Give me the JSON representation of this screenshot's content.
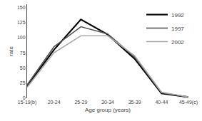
{
  "chart_data": {
    "type": "line",
    "categories": [
      "15-19(b)",
      "20-24",
      "25-29",
      "30-34",
      "35-39",
      "40-44",
      "45-49(c)"
    ],
    "series": [
      {
        "name": "1992",
        "color": "#000000",
        "values": [
          20,
          80,
          130,
          105,
          65,
          8,
          2
        ]
      },
      {
        "name": "1997",
        "color": "#555555",
        "values": [
          22,
          85,
          118,
          106,
          68,
          9,
          2
        ]
      },
      {
        "name": "2002",
        "color": "#aaaaaa",
        "values": [
          18,
          75,
          103,
          103,
          70,
          10,
          2
        ]
      }
    ],
    "xlabel": "Age group (years)",
    "ylabel": "rate",
    "ylim": [
      0,
      155
    ],
    "yticks": [
      0,
      25,
      50,
      75,
      100,
      125,
      150
    ],
    "grid": false,
    "legend": "upper right"
  }
}
